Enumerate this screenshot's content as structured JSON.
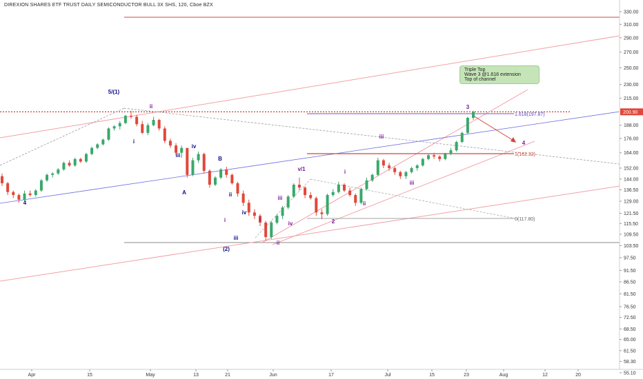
{
  "chart_data": {
    "type": "candlestick",
    "title": "DIREXION SHARES ETF TRUST DAILY SEMICONDUCTOR BULL 3X SHS, 120, Cboe BZX",
    "yaxis": {
      "scale": "log",
      "ticks": [
        "330.00",
        "310.00",
        "290.00",
        "270.00",
        "250.00",
        "230.00",
        "215.00",
        "200.90",
        "188.00",
        "176.00",
        "164.00",
        "152.00",
        "144.00",
        "136.50",
        "129.00",
        "121.50",
        "115.50",
        "109.50",
        "103.50",
        "97.50",
        "91.50",
        "86.50",
        "81.50",
        "76.50",
        "72.50",
        "68.50",
        "65.00",
        "61.50",
        "58.30",
        "55.10"
      ],
      "range": [
        53.5,
        345
      ]
    },
    "xaxis": {
      "ticks": [
        "Apr",
        "15",
        "May",
        "13",
        "21",
        "Jun",
        "17",
        "Jul",
        "15",
        "23",
        "Aug",
        "12",
        "20"
      ]
    },
    "last_price": "200.90",
    "annotations": {
      "callout": [
        "Triple Top",
        "Wave 3 @1.618 extension",
        "Top of channel"
      ],
      "fib_1618": "1.618(197.87)",
      "fib_1": "1(162.32)",
      "fib_0": "0(117.80)"
    },
    "wave_labels": [
      "5/(1)",
      "ii",
      "i",
      "iv",
      "iii",
      "B",
      "A",
      "4",
      "ii",
      "iv",
      "i",
      "iii",
      "(2)",
      "i",
      "iii",
      "iv",
      "ii",
      "v/1",
      "i",
      "2",
      "ii",
      "iii",
      "iii",
      "3",
      "4"
    ],
    "candles": [
      {
        "d": "Mar 26",
        "o": 146,
        "h": 148,
        "l": 139,
        "c": 141
      },
      {
        "d": "Mar 27",
        "o": 141,
        "h": 142,
        "l": 133,
        "c": 135
      },
      {
        "d": "Mar 28",
        "o": 135,
        "h": 136,
        "l": 131,
        "c": 133
      },
      {
        "d": "Mar 29",
        "o": 133,
        "h": 134,
        "l": 128,
        "c": 130
      },
      {
        "d": "Apr 01",
        "o": 130,
        "h": 136,
        "l": 129,
        "c": 134
      },
      {
        "d": "Apr 02",
        "o": 134,
        "h": 136,
        "l": 132,
        "c": 133
      },
      {
        "d": "Apr 03",
        "o": 133,
        "h": 137,
        "l": 132,
        "c": 136
      },
      {
        "d": "Apr 04",
        "o": 136,
        "h": 144,
        "l": 135,
        "c": 143
      },
      {
        "d": "Apr 05",
        "o": 143,
        "h": 148,
        "l": 142,
        "c": 147
      },
      {
        "d": "Apr 08",
        "o": 147,
        "h": 149,
        "l": 145,
        "c": 148
      },
      {
        "d": "Apr 09",
        "o": 148,
        "h": 152,
        "l": 147,
        "c": 151
      },
      {
        "d": "Apr 10",
        "o": 151,
        "h": 157,
        "l": 150,
        "c": 156
      },
      {
        "d": "Apr 11",
        "o": 156,
        "h": 158,
        "l": 153,
        "c": 154
      },
      {
        "d": "Apr 12",
        "o": 154,
        "h": 160,
        "l": 153,
        "c": 159
      },
      {
        "d": "Apr 15",
        "o": 159,
        "h": 160,
        "l": 156,
        "c": 157
      },
      {
        "d": "Apr 16",
        "o": 157,
        "h": 164,
        "l": 156,
        "c": 163
      },
      {
        "d": "Apr 17",
        "o": 163,
        "h": 169,
        "l": 162,
        "c": 168
      },
      {
        "d": "Apr 18",
        "o": 168,
        "h": 172,
        "l": 167,
        "c": 171
      },
      {
        "d": "Apr 22",
        "o": 171,
        "h": 176,
        "l": 170,
        "c": 175
      },
      {
        "d": "Apr 23",
        "o": 175,
        "h": 186,
        "l": 174,
        "c": 185
      },
      {
        "d": "Apr 24",
        "o": 185,
        "h": 188,
        "l": 183,
        "c": 187
      },
      {
        "d": "Apr 25",
        "o": 187,
        "h": 192,
        "l": 184,
        "c": 190
      },
      {
        "d": "Apr 26",
        "o": 190,
        "h": 198,
        "l": 189,
        "c": 197
      },
      {
        "d": "Apr 29",
        "o": 197,
        "h": 202,
        "l": 194,
        "c": 196
      },
      {
        "d": "Apr 30",
        "o": 196,
        "h": 198,
        "l": 187,
        "c": 189
      },
      {
        "d": "May 01",
        "o": 189,
        "h": 192,
        "l": 180,
        "c": 181
      },
      {
        "d": "May 02",
        "o": 181,
        "h": 190,
        "l": 179,
        "c": 188
      },
      {
        "d": "May 03",
        "o": 188,
        "h": 196,
        "l": 187,
        "c": 193
      },
      {
        "d": "May 06",
        "o": 193,
        "h": 194,
        "l": 183,
        "c": 185
      },
      {
        "d": "May 07",
        "o": 185,
        "h": 187,
        "l": 172,
        "c": 174
      },
      {
        "d": "May 08",
        "o": 174,
        "h": 176,
        "l": 168,
        "c": 170
      },
      {
        "d": "May 09",
        "o": 170,
        "h": 172,
        "l": 162,
        "c": 164
      },
      {
        "d": "May 10",
        "o": 164,
        "h": 170,
        "l": 160,
        "c": 168
      },
      {
        "d": "May 13",
        "o": 168,
        "h": 168,
        "l": 145,
        "c": 147
      },
      {
        "d": "May 14",
        "o": 147,
        "h": 160,
        "l": 146,
        "c": 158
      },
      {
        "d": "May 15",
        "o": 158,
        "h": 165,
        "l": 156,
        "c": 163
      },
      {
        "d": "May 16",
        "o": 163,
        "h": 164,
        "l": 148,
        "c": 150
      },
      {
        "d": "May 17",
        "o": 150,
        "h": 151,
        "l": 138,
        "c": 140
      },
      {
        "d": "May 20",
        "o": 140,
        "h": 146,
        "l": 139,
        "c": 145
      },
      {
        "d": "May 21",
        "o": 145,
        "h": 152,
        "l": 144,
        "c": 151
      },
      {
        "d": "May 22",
        "o": 151,
        "h": 153,
        "l": 145,
        "c": 147
      },
      {
        "d": "May 23",
        "o": 147,
        "h": 148,
        "l": 140,
        "c": 141
      },
      {
        "d": "May 24",
        "o": 141,
        "h": 142,
        "l": 132,
        "c": 134
      },
      {
        "d": "May 28",
        "o": 134,
        "h": 136,
        "l": 126,
        "c": 128
      },
      {
        "d": "May 29",
        "o": 128,
        "h": 130,
        "l": 120,
        "c": 122
      },
      {
        "d": "May 30",
        "o": 122,
        "h": 124,
        "l": 118,
        "c": 120
      },
      {
        "d": "May 31",
        "o": 120,
        "h": 121,
        "l": 114,
        "c": 116
      },
      {
        "d": "Jun 03",
        "o": 116,
        "h": 117,
        "l": 106,
        "c": 108
      },
      {
        "d": "Jun 04",
        "o": 108,
        "h": 117,
        "l": 107,
        "c": 116
      },
      {
        "d": "Jun 05",
        "o": 116,
        "h": 121,
        "l": 115,
        "c": 120
      },
      {
        "d": "Jun 06",
        "o": 120,
        "h": 126,
        "l": 118,
        "c": 125
      },
      {
        "d": "Jun 07",
        "o": 125,
        "h": 133,
        "l": 124,
        "c": 132
      },
      {
        "d": "Jun 10",
        "o": 132,
        "h": 141,
        "l": 131,
        "c": 140
      },
      {
        "d": "Jun 11",
        "o": 140,
        "h": 145,
        "l": 136,
        "c": 138
      },
      {
        "d": "Jun 12",
        "o": 138,
        "h": 139,
        "l": 131,
        "c": 133
      },
      {
        "d": "Jun 13",
        "o": 133,
        "h": 135,
        "l": 130,
        "c": 131
      },
      {
        "d": "Jun 14",
        "o": 131,
        "h": 132,
        "l": 120,
        "c": 122
      },
      {
        "d": "Jun 17",
        "o": 122,
        "h": 124,
        "l": 118,
        "c": 121
      },
      {
        "d": "Jun 18",
        "o": 121,
        "h": 134,
        "l": 120,
        "c": 133
      },
      {
        "d": "Jun 19",
        "o": 133,
        "h": 137,
        "l": 132,
        "c": 135
      },
      {
        "d": "Jun 20",
        "o": 135,
        "h": 142,
        "l": 134,
        "c": 140
      },
      {
        "d": "Jun 21",
        "o": 140,
        "h": 141,
        "l": 135,
        "c": 136
      },
      {
        "d": "Jun 24",
        "o": 136,
        "h": 138,
        "l": 132,
        "c": 133
      },
      {
        "d": "Jun 25",
        "o": 133,
        "h": 134,
        "l": 126,
        "c": 128
      },
      {
        "d": "Jun 26",
        "o": 128,
        "h": 138,
        "l": 127,
        "c": 137
      },
      {
        "d": "Jun 27",
        "o": 137,
        "h": 145,
        "l": 136,
        "c": 143
      },
      {
        "d": "Jun 28",
        "o": 143,
        "h": 148,
        "l": 142,
        "c": 147
      },
      {
        "d": "Jul 01",
        "o": 147,
        "h": 160,
        "l": 146,
        "c": 158
      },
      {
        "d": "Jul 02",
        "o": 158,
        "h": 159,
        "l": 152,
        "c": 154
      },
      {
        "d": "Jul 03",
        "o": 154,
        "h": 156,
        "l": 150,
        "c": 152
      },
      {
        "d": "Jul 05",
        "o": 152,
        "h": 153,
        "l": 147,
        "c": 149
      },
      {
        "d": "Jul 08",
        "o": 149,
        "h": 150,
        "l": 144,
        "c": 146
      },
      {
        "d": "Jul 09",
        "o": 146,
        "h": 150,
        "l": 144,
        "c": 149
      },
      {
        "d": "Jul 10",
        "o": 149,
        "h": 153,
        "l": 148,
        "c": 152
      },
      {
        "d": "Jul 11",
        "o": 152,
        "h": 155,
        "l": 150,
        "c": 154
      },
      {
        "d": "Jul 12",
        "o": 154,
        "h": 160,
        "l": 153,
        "c": 159
      },
      {
        "d": "Jul 15",
        "o": 159,
        "h": 163,
        "l": 158,
        "c": 162
      },
      {
        "d": "Jul 16",
        "o": 162,
        "h": 164,
        "l": 159,
        "c": 161
      },
      {
        "d": "Jul 17",
        "o": 161,
        "h": 162,
        "l": 157,
        "c": 159
      },
      {
        "d": "Jul 18",
        "o": 159,
        "h": 164,
        "l": 158,
        "c": 163
      },
      {
        "d": "Jul 19",
        "o": 163,
        "h": 168,
        "l": 162,
        "c": 166
      },
      {
        "d": "Jul 22",
        "o": 166,
        "h": 174,
        "l": 165,
        "c": 173
      },
      {
        "d": "Jul 23",
        "o": 173,
        "h": 182,
        "l": 172,
        "c": 181
      },
      {
        "d": "Jul 24",
        "o": 181,
        "h": 196,
        "l": 180,
        "c": 195
      },
      {
        "d": "Jul 25",
        "o": 195,
        "h": 202,
        "l": 193,
        "c": 200.9
      }
    ]
  }
}
